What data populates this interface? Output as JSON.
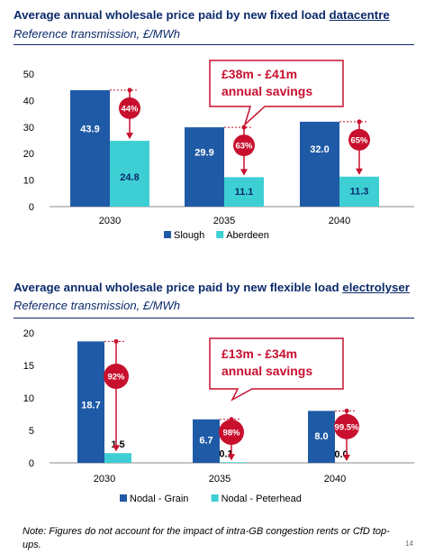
{
  "chart_data": [
    {
      "type": "bar",
      "title_prefix": "Average annual wholesale price paid by new fixed load ",
      "title_emph": "datacentre",
      "subtitle": "Reference transmission, £/MWh",
      "categories": [
        "2030",
        "2035",
        "2040"
      ],
      "series": [
        {
          "name": "Slough",
          "values": [
            43.9,
            29.9,
            32.0
          ],
          "labels": [
            "43.9",
            "29.9",
            "32.0"
          ],
          "color": "#1f5aa6"
        },
        {
          "name": "Aberdeen",
          "values": [
            24.8,
            11.1,
            11.3
          ],
          "labels": [
            "24.8",
            "11.1",
            "11.3"
          ],
          "color": "#3ecfd4"
        }
      ],
      "reductions": [
        "44%",
        "63%",
        "65%"
      ],
      "yticks": [
        0,
        10,
        20,
        30,
        40,
        50
      ],
      "ylim": [
        0,
        50
      ],
      "callout": {
        "line1": "£38m - £41m",
        "line2": "annual savings"
      },
      "legend_position": "bottom",
      "grid": false
    },
    {
      "type": "bar",
      "title_prefix": "Average annual wholesale price paid by new flexible load ",
      "title_emph": "electrolyser",
      "subtitle": "Reference transmission, £/MWh",
      "categories": [
        "2030",
        "2035",
        "2040"
      ],
      "series": [
        {
          "name": "Nodal - Grain",
          "values": [
            18.7,
            6.7,
            8.0
          ],
          "labels": [
            "18.7",
            "6.7",
            "8.0"
          ],
          "color": "#1f5aa6"
        },
        {
          "name": "Nodal - Peterhead",
          "values": [
            1.5,
            0.1,
            0.0
          ],
          "labels": [
            "1.5",
            "0.1",
            "0.0"
          ],
          "color": "#3ecfd4"
        }
      ],
      "reductions": [
        "92%",
        "98%",
        "99.5%"
      ],
      "yticks": [
        0,
        5,
        10,
        15,
        20
      ],
      "ylim": [
        0,
        20
      ],
      "callout": {
        "line1": "£13m - £34m",
        "line2": "annual savings"
      },
      "legend_position": "bottom",
      "grid": false
    }
  ],
  "footnote": "Note: Figures do not account for the impact of intra-GB congestion rents or CfD top-ups.",
  "page_number": "14",
  "colors": {
    "title": "#0b2a6b",
    "accent_red": "#c8102e",
    "callout_text": "#c8102e"
  }
}
